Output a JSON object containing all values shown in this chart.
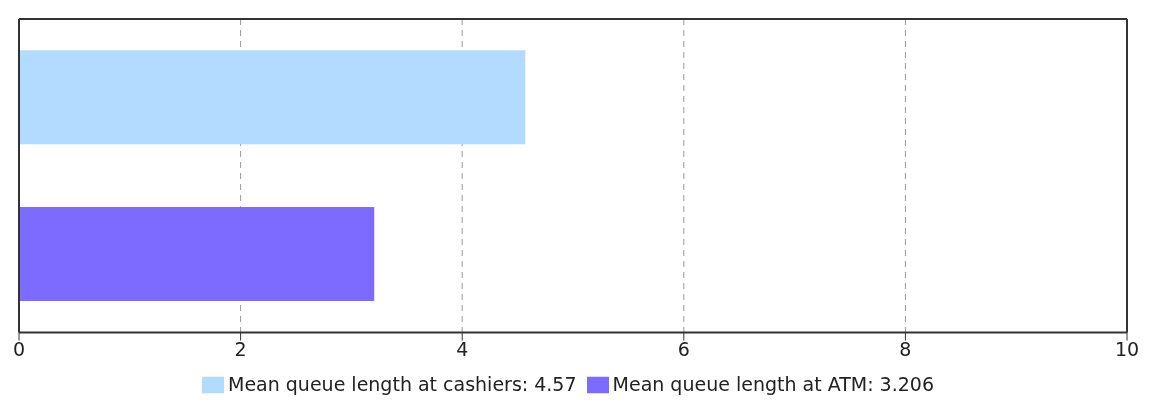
{
  "chart_data": {
    "type": "bar",
    "orientation": "horizontal",
    "categories": [
      null,
      null
    ],
    "series": [
      {
        "name": "Mean queue length at cashiers: 4.57",
        "color": "#b3dbff",
        "values": [
          4.57,
          null
        ]
      },
      {
        "name": "Mean queue length at ATM: 3.206",
        "color": "#7d6bff",
        "values": [
          null,
          3.206
        ]
      }
    ],
    "xlim": [
      0,
      10
    ],
    "xticks": [
      0,
      2,
      4,
      6,
      8,
      10
    ],
    "grid": "x",
    "line_style": "dashed",
    "legend": "bottom"
  }
}
